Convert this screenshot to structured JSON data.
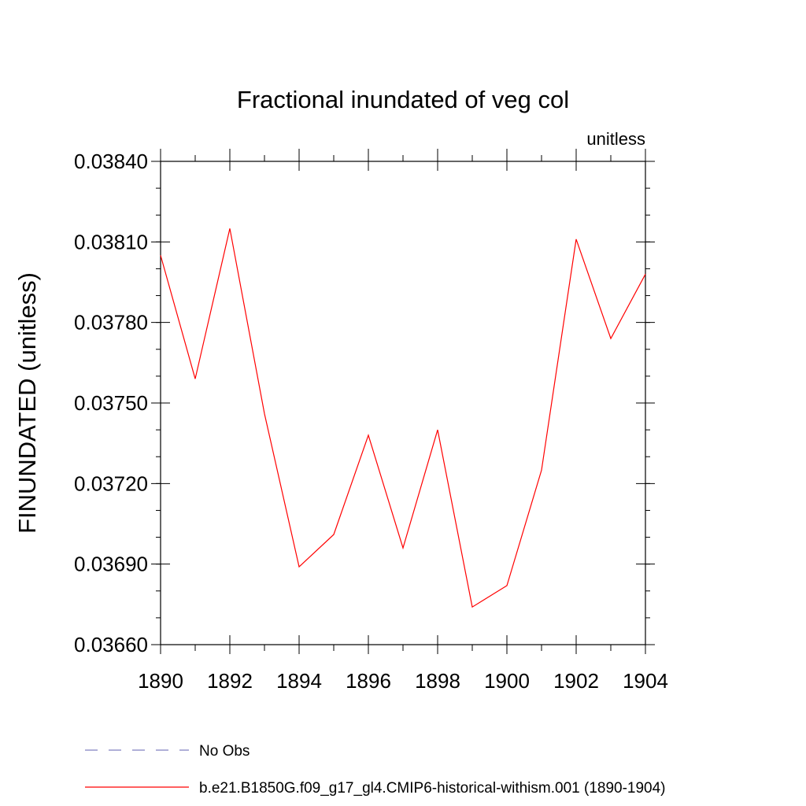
{
  "chart_data": {
    "type": "line",
    "title": "Fractional inundated of veg col",
    "units_label": "unitless",
    "ylabel": "FINUNDATED  (unitless)",
    "xlabel": "",
    "xlim": [
      1890,
      1904
    ],
    "ylim": [
      0.0366,
      0.0384
    ],
    "x_ticks": [
      "1890",
      "1892",
      "1894",
      "1896",
      "1898",
      "1900",
      "1902",
      "1904"
    ],
    "x_tick_values": [
      1890,
      1892,
      1894,
      1896,
      1898,
      1900,
      1902,
      1904
    ],
    "y_ticks": [
      "0.03660",
      "0.03690",
      "0.03720",
      "0.03750",
      "0.03780",
      "0.03810",
      "0.03840"
    ],
    "y_tick_values": [
      0.0366,
      0.0369,
      0.0372,
      0.0375,
      0.0378,
      0.0381,
      0.0384
    ],
    "y_minor_step": 0.0001,
    "x_minor_step": 1,
    "grid": false,
    "legend_placement": "bottom",
    "series": [
      {
        "name": "b.e21.B1850G.f09_g17_gl4.CMIP6-historical-withism.001 (1890-1904)",
        "color": "#ff0000",
        "style": "solid",
        "x": [
          1890,
          1891,
          1892,
          1893,
          1894,
          1895,
          1896,
          1897,
          1898,
          1899,
          1900,
          1901,
          1902,
          1903,
          1904
        ],
        "y": [
          0.03805,
          0.03759,
          0.03815,
          0.03746,
          0.03689,
          0.03701,
          0.03738,
          0.03696,
          0.0374,
          0.03674,
          0.03682,
          0.03725,
          0.03811,
          0.03774,
          0.03798
        ]
      }
    ],
    "legend": [
      {
        "label": "No Obs",
        "color": "#8080c0",
        "style": "dashed"
      },
      {
        "label": "b.e21.B1850G.f09_g17_gl4.CMIP6-historical-withism.001 (1890-1904)",
        "color": "#ff0000",
        "style": "solid"
      }
    ]
  }
}
